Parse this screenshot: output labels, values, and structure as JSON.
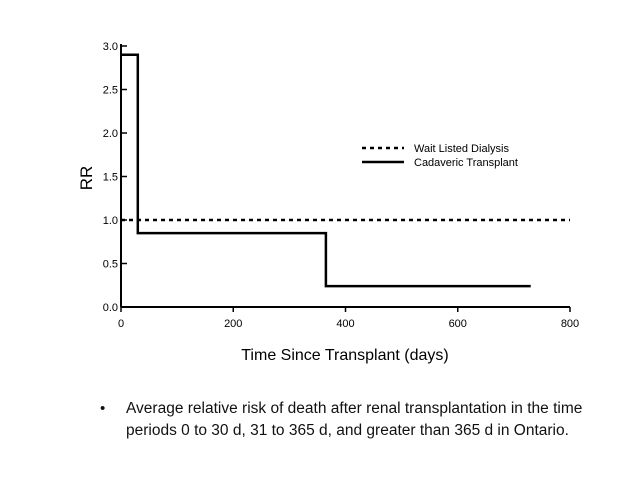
{
  "chart_data": {
    "type": "line",
    "xlabel": "Time Since Transplant (days)",
    "ylabel": "RR",
    "xlim": [
      0,
      800
    ],
    "ylim": [
      0.0,
      3.0
    ],
    "x_ticks": [
      0,
      200,
      400,
      600,
      800
    ],
    "x_tick_labels": [
      "0",
      "200",
      "400",
      "600",
      "800"
    ],
    "y_ticks": [
      0.0,
      0.5,
      1.0,
      1.5,
      2.0,
      2.5,
      3.0
    ],
    "y_tick_labels": [
      "0.0",
      "0.5",
      "1.0",
      "1.5",
      "2.0",
      "2.5",
      "3.0"
    ],
    "grid": false,
    "legend_position": "right",
    "series": [
      {
        "name": "Wait Listed Dialysis",
        "style": "dotted",
        "color": "#000000",
        "x": [
          0,
          800
        ],
        "y": [
          1.0,
          1.0
        ]
      },
      {
        "name": "Cadaveric Transplant",
        "style": "solid-step",
        "color": "#000000",
        "x": [
          0,
          30,
          30,
          365,
          365,
          730
        ],
        "y": [
          2.9,
          2.9,
          0.85,
          0.85,
          0.24,
          0.24
        ]
      }
    ]
  },
  "caption": {
    "bullet": "•",
    "text": "Average relative risk of death after renal transplantation in the time periods 0 to 30 d, 31 to 365 d, and greater than 365 d in Ontario."
  }
}
